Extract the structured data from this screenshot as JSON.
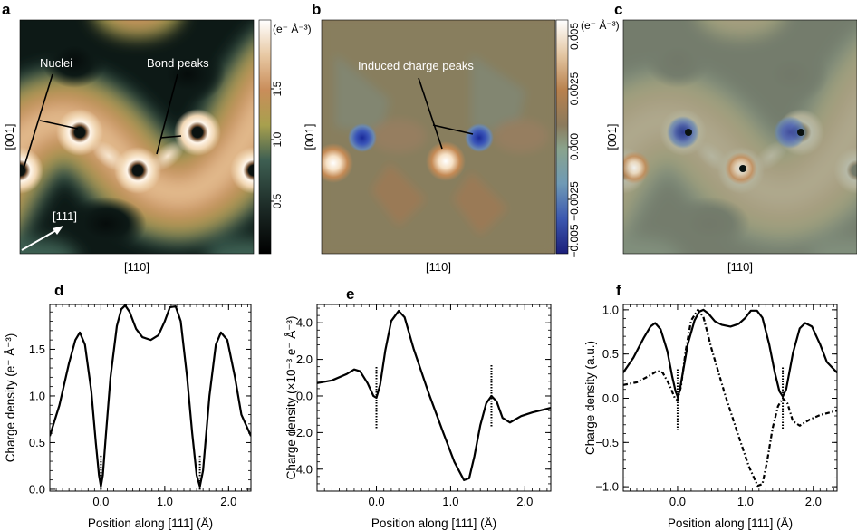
{
  "panels": {
    "a": {
      "letter": "a",
      "xlabel": "[110]",
      "ylabel": "[001]",
      "annotations": {
        "nuclei": "Nuclei",
        "bond_peaks": "Bond peaks",
        "direction": "[111]"
      },
      "colorbar": {
        "unit": "(e⁻ Å⁻³)",
        "ticks": [
          "1.5",
          "1.0",
          "0.5"
        ]
      }
    },
    "b": {
      "letter": "b",
      "xlabel": "[110]",
      "ylabel": "[001]",
      "annotations": {
        "induced": "Induced charge peaks"
      },
      "colorbar": {
        "unit": "(e⁻ Å⁻³)",
        "ticks": [
          "0.005",
          "0.0025",
          "0.000",
          "−0.0025",
          "−0.005"
        ]
      }
    },
    "c": {
      "letter": "c",
      "xlabel": "[110]",
      "ylabel": "[001]"
    }
  },
  "chart_data": [
    {
      "panel": "d",
      "type": "line",
      "xlabel": "Position along [111] (Å)",
      "ylabel": "Charge density (e⁻ Å⁻³)",
      "xlim": [
        -0.8,
        2.35
      ],
      "ylim": [
        -0.02,
        1.98
      ],
      "xticks": [
        0.0,
        1.0,
        2.0
      ],
      "xtick_labels": [
        "0.0",
        "1.0",
        "2.0"
      ],
      "yticks": [
        0.0,
        0.5,
        1.0,
        1.5
      ],
      "ytick_labels": [
        "0.0",
        "0.5",
        "1.0",
        "1.5"
      ],
      "nuclei_positions": [
        0.0,
        1.55
      ],
      "series": [
        {
          "style": "solid",
          "x": [
            -0.8,
            -0.65,
            -0.5,
            -0.4,
            -0.33,
            -0.25,
            -0.15,
            -0.08,
            -0.03,
            0.0,
            0.03,
            0.08,
            0.15,
            0.25,
            0.32,
            0.38,
            0.45,
            0.55,
            0.65,
            0.78,
            0.9,
            1.0,
            1.08,
            1.17,
            1.25,
            1.35,
            1.43,
            1.5,
            1.55,
            1.6,
            1.7,
            1.8,
            1.88,
            1.98,
            2.1,
            2.2,
            2.35
          ],
          "y": [
            0.57,
            0.9,
            1.35,
            1.6,
            1.68,
            1.55,
            1.05,
            0.5,
            0.15,
            0.03,
            0.15,
            0.6,
            1.2,
            1.75,
            1.93,
            1.97,
            1.9,
            1.72,
            1.63,
            1.6,
            1.65,
            1.8,
            1.95,
            1.96,
            1.8,
            1.2,
            0.6,
            0.15,
            0.03,
            0.2,
            1.0,
            1.55,
            1.68,
            1.6,
            1.2,
            0.8,
            0.57
          ]
        }
      ]
    },
    {
      "panel": "e",
      "type": "line",
      "xlabel": "Position along [111] (Å)",
      "ylabel": "Charge density (×10⁻³ e⁻ Å⁻³)",
      "xlim": [
        -0.8,
        2.35
      ],
      "ylim": [
        -5.2,
        5.0
      ],
      "xticks": [
        0.0,
        1.0,
        2.0
      ],
      "xtick_labels": [
        "0.0",
        "1.0",
        "2.0"
      ],
      "yticks": [
        -4.0,
        -2.0,
        0.0,
        2.0,
        4.0
      ],
      "ytick_labels": [
        "−4.0",
        "−2.0",
        "0.0",
        "2.0",
        "4.0"
      ],
      "nuclei_positions": [
        0.0,
        1.55
      ],
      "series": [
        {
          "style": "solid",
          "x": [
            -0.8,
            -0.6,
            -0.4,
            -0.3,
            -0.22,
            -0.12,
            -0.04,
            0.0,
            0.05,
            0.12,
            0.2,
            0.3,
            0.38,
            0.5,
            0.7,
            0.9,
            1.05,
            1.18,
            1.25,
            1.32,
            1.4,
            1.48,
            1.55,
            1.62,
            1.7,
            1.8,
            1.95,
            2.1,
            2.35
          ],
          "y": [
            0.7,
            0.85,
            1.2,
            1.45,
            1.35,
            0.7,
            0.0,
            -0.1,
            0.6,
            2.5,
            4.1,
            4.65,
            4.3,
            2.6,
            0.2,
            -2.0,
            -3.6,
            -4.6,
            -4.5,
            -3.3,
            -1.6,
            -0.4,
            0.0,
            -0.3,
            -1.2,
            -1.45,
            -1.1,
            -0.9,
            -0.65
          ]
        }
      ]
    },
    {
      "panel": "f",
      "type": "line",
      "xlabel": "Position along [111] (Å)",
      "ylabel": "Charge density (a.u.)",
      "xlim": [
        -0.8,
        2.35
      ],
      "ylim": [
        -1.05,
        1.06
      ],
      "xticks": [
        0.0,
        1.0,
        2.0
      ],
      "xtick_labels": [
        "0.0",
        "1.0",
        "2.0"
      ],
      "yticks": [
        -1.0,
        -0.5,
        0.0,
        0.5,
        1.0
      ],
      "ytick_labels": [
        "−1.0",
        "−0.5",
        "0.0",
        "0.5",
        "1.0"
      ],
      "nuclei_positions": [
        0.0,
        1.55
      ],
      "series": [
        {
          "style": "solid",
          "x": [
            -0.8,
            -0.65,
            -0.5,
            -0.4,
            -0.33,
            -0.25,
            -0.15,
            -0.08,
            -0.03,
            0.0,
            0.03,
            0.08,
            0.15,
            0.25,
            0.32,
            0.38,
            0.45,
            0.55,
            0.65,
            0.78,
            0.9,
            1.0,
            1.08,
            1.17,
            1.25,
            1.35,
            1.43,
            1.5,
            1.55,
            1.6,
            1.7,
            1.8,
            1.88,
            1.98,
            2.1,
            2.2,
            2.35
          ],
          "y": [
            0.29,
            0.46,
            0.68,
            0.81,
            0.85,
            0.78,
            0.53,
            0.25,
            0.08,
            0.02,
            0.08,
            0.3,
            0.61,
            0.88,
            0.98,
            1.0,
            0.96,
            0.87,
            0.83,
            0.81,
            0.84,
            0.91,
            0.99,
            0.99,
            0.91,
            0.61,
            0.3,
            0.08,
            0.02,
            0.1,
            0.51,
            0.79,
            0.85,
            0.81,
            0.61,
            0.41,
            0.29
          ]
        },
        {
          "style": "dash-dot",
          "x": [
            -0.8,
            -0.6,
            -0.4,
            -0.3,
            -0.22,
            -0.12,
            -0.04,
            0.0,
            0.05,
            0.12,
            0.2,
            0.3,
            0.38,
            0.5,
            0.7,
            0.9,
            1.05,
            1.18,
            1.25,
            1.32,
            1.4,
            1.48,
            1.55,
            1.62,
            1.7,
            1.8,
            1.95,
            2.1,
            2.35
          ],
          "y": [
            0.15,
            0.18,
            0.26,
            0.31,
            0.29,
            0.15,
            0.0,
            -0.02,
            0.13,
            0.54,
            0.88,
            1.0,
            0.92,
            0.56,
            0.04,
            -0.43,
            -0.77,
            -0.99,
            -0.97,
            -0.71,
            -0.34,
            -0.09,
            0.0,
            -0.06,
            -0.26,
            -0.31,
            -0.24,
            -0.19,
            -0.14
          ]
        }
      ]
    }
  ],
  "colors": {
    "map_dark": "#0e1a18",
    "map_tan": "#c8925c",
    "map_white": "#ffffff",
    "map_b_background": "#8b7a5c",
    "map_b_negative": "#2638a0",
    "line": "#000000"
  }
}
